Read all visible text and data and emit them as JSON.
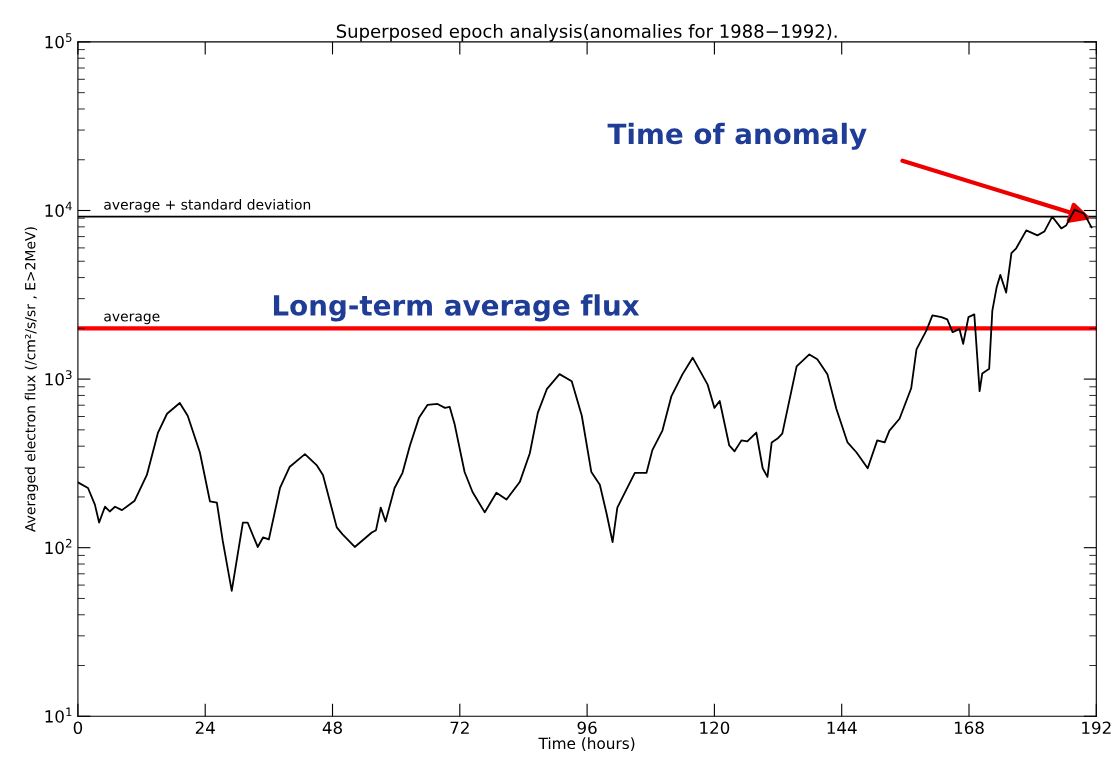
{
  "chart_data": {
    "type": "line",
    "title": "Superposed epoch analysis(anomalies for 1988−1992).",
    "xlabel": "Time (hours)",
    "ylabel": "Averaged electron flux (/cm²/s/sr , E>2MeV)",
    "log": "y",
    "xlim": [
      0,
      192
    ],
    "xticks": [
      0,
      24,
      48,
      72,
      96,
      120,
      144,
      168,
      192
    ],
    "ylim": [
      10,
      100000
    ],
    "yticks": [
      {
        "value": 10,
        "label": "10$^{1}$"
      },
      {
        "value": 100,
        "label": "10$^{2}$"
      },
      {
        "value": 1000,
        "label": "10$^{3}$"
      },
      {
        "value": 10000,
        "label": "10$^{4}$"
      },
      {
        "value": 100000,
        "label": "10$^{5}$"
      }
    ],
    "grid": false,
    "legend": false,
    "marker": "none",
    "line_style": "solid",
    "series": [
      {
        "color": "#000000",
        "x": [
          0,
          1.9,
          3.2,
          4.0,
          5.1,
          6.0,
          7.0,
          8.3,
          10.7,
          13.0,
          15.1,
          16.8,
          19.2,
          20.7,
          23.0,
          24.9,
          26.2,
          27.3,
          29.0,
          31.1,
          32.0,
          33.9,
          34.9,
          36.0,
          38.1,
          39.9,
          42.8,
          45.0,
          46.2,
          48.8,
          49.9,
          52.2,
          55.4,
          56.2,
          57.1,
          58.0,
          59.7,
          61.2,
          62.6,
          64.3,
          65.9,
          67.8,
          69.2,
          70.1,
          71.0,
          72.9,
          74.4,
          76.7,
          78.9,
          80.8,
          83.3,
          85.2,
          86.7,
          88.4,
          90.8,
          93.1,
          95.0,
          96.8,
          98.4,
          99.7,
          100.8,
          101.7,
          103.4,
          105.0,
          107.2,
          108.3,
          110.2,
          111.9,
          114.0,
          115.9,
          118.7,
          120.0,
          121.0,
          122.8,
          123.8,
          125.1,
          126.2,
          127.9,
          129.1,
          130.0,
          130.8,
          131.9,
          132.8,
          135.5,
          137.9,
          139.4,
          141.3,
          143.0,
          145.1,
          146.8,
          148.9,
          150.7,
          152.1,
          153.0,
          154.9,
          157.1,
          158.1,
          160.0,
          161.1,
          162.8,
          163.9,
          164.9,
          166.2,
          166.9,
          167.9,
          169.0,
          170.0,
          170.5,
          171.8,
          172.4,
          173.2,
          173.9,
          175.0,
          176.0,
          176.9,
          178.8,
          180.9,
          182.2,
          183.7,
          185.4,
          186.3,
          187.9,
          189.7,
          191.1
        ],
        "values": [
          244,
          226,
          180,
          141,
          175,
          164,
          175,
          167,
          190,
          270,
          482,
          623,
          722,
          606,
          367,
          188,
          185,
          110,
          55.5,
          141,
          141,
          101,
          115,
          112,
          226,
          301,
          359,
          309,
          270,
          132,
          120,
          101,
          123,
          127,
          173,
          143,
          226,
          278,
          404,
          589,
          703,
          712,
          675,
          684,
          544,
          281,
          214,
          162,
          212,
          193,
          245,
          363,
          630,
          871,
          1070,
          970,
          606,
          281,
          236,
          158,
          108,
          173,
          221,
          278,
          278,
          379,
          495,
          793,
          1070,
          1340,
          931,
          675,
          741,
          404,
          373,
          433,
          427,
          482,
          296,
          263,
          421,
          444,
          475,
          1190,
          1400,
          1310,
          1070,
          665,
          421,
          367,
          296,
          433,
          421,
          495,
          582,
          882,
          1500,
          1950,
          2390,
          2330,
          2260,
          1900,
          1980,
          1620,
          2330,
          2420,
          848,
          1080,
          1150,
          2550,
          3490,
          4150,
          3260,
          5590,
          5970,
          7620,
          7120,
          7500,
          9190,
          7830,
          8140,
          10100,
          9580,
          7940
        ]
      }
    ],
    "ref_lines": [
      {
        "axis": "y",
        "value": 9200,
        "label": "average + standard deviation",
        "color": "#000000"
      },
      {
        "axis": "y",
        "value": 2000,
        "label": "average",
        "color": "#ff0000"
      }
    ],
    "annotations": [
      "Time of anomaly",
      "Long-term average flux"
    ]
  }
}
